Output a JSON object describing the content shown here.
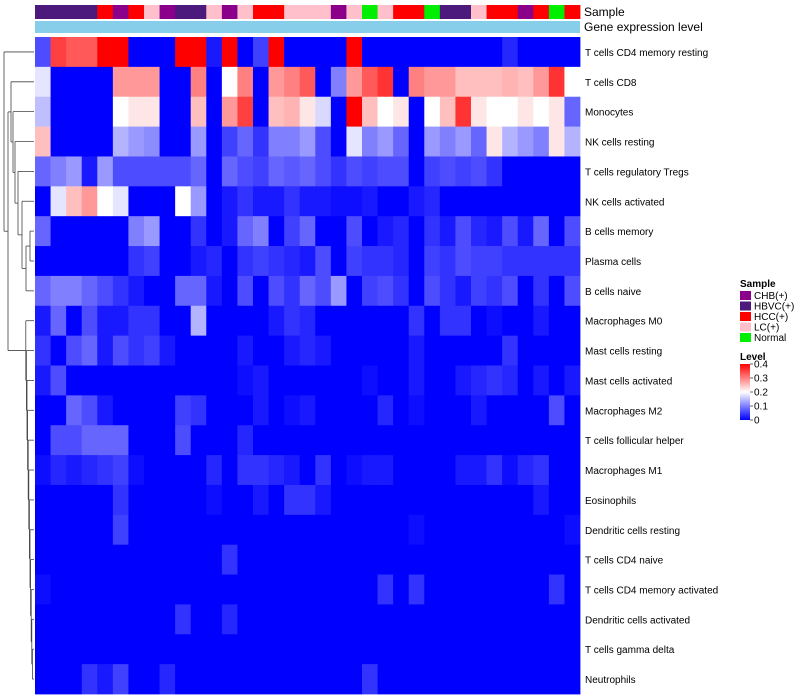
{
  "chart_data": {
    "type": "heatmap",
    "title": "",
    "annotation_tracks": [
      "Sample",
      "Gene expression level"
    ],
    "rows": [
      "T cells CD4 memory resting",
      "T cells CD8",
      "Monocytes",
      "NK cells resting",
      "T cells regulatory  Tregs",
      "NK cells activated",
      "B cells memory",
      "Plasma cells",
      "B cells naive",
      "Macrophages M0",
      "Mast cells resting",
      "Mast cells activated",
      "Macrophages M2",
      "T cells follicular helper",
      "Macrophages M1",
      "Eosinophils",
      "Dendritic cells resting",
      "T cells CD4 naive",
      "T cells CD4 memory activated",
      "Dendritic cells activated",
      "T cells gamma delta",
      "Neutrophils"
    ],
    "sample_groups": [
      "HBVC(+)",
      "HBVC(+)",
      "HBVC(+)",
      "HBVC(+)",
      "HCC(+)",
      "CHB(+)",
      "HCC(+)",
      "LC(+)",
      "CHB(+)",
      "HBVC(+)",
      "HBVC(+)",
      "LC(+)",
      "CHB(+)",
      "LC(+)",
      "HCC(+)",
      "HCC(+)",
      "LC(+)",
      "LC(+)",
      "LC(+)",
      "CHB(+)",
      "LC(+)",
      "Normal",
      "LC(+)",
      "HCC(+)",
      "HCC(+)",
      "Normal",
      "HBVC(+)",
      "HBVC(+)",
      "LC(+)",
      "HCC(+)",
      "HCC(+)",
      "CHB(+)",
      "HCC(+)",
      "Normal",
      "HCC(+)"
    ],
    "values": [
      [
        0.06,
        0.35,
        0.33,
        0.33,
        0.4,
        0.4,
        0.0,
        0.0,
        0.0,
        0.4,
        0.4,
        0.02,
        0.4,
        0.0,
        0.05,
        0.4,
        0.0,
        0.0,
        0.0,
        0.0,
        0.4,
        0.0,
        0.0,
        0.0,
        0.0,
        0.0,
        0.0,
        0.0,
        0.0,
        0.0,
        0.03,
        0.0,
        0.0,
        0.0,
        0.0
      ],
      [
        0.18,
        0.0,
        0.0,
        0.0,
        0.0,
        0.28,
        0.28,
        0.28,
        0.0,
        0.0,
        0.3,
        0.0,
        0.2,
        0.3,
        0.0,
        0.28,
        0.3,
        0.33,
        0.0,
        0.1,
        0.28,
        0.33,
        0.36,
        0.0,
        0.3,
        0.28,
        0.28,
        0.25,
        0.25,
        0.25,
        0.26,
        0.25,
        0.28,
        0.36,
        0.2
      ],
      [
        0.15,
        0.0,
        0.0,
        0.0,
        0.0,
        0.2,
        0.22,
        0.22,
        0.0,
        0.0,
        0.25,
        0.0,
        0.28,
        0.35,
        0.0,
        0.25,
        0.26,
        0.22,
        0.17,
        0.0,
        0.4,
        0.25,
        0.2,
        0.22,
        0.0,
        0.2,
        0.25,
        0.36,
        0.22,
        0.2,
        0.2,
        0.22,
        0.2,
        0.22,
        0.08
      ],
      [
        0.25,
        0.0,
        0.0,
        0.0,
        0.0,
        0.14,
        0.12,
        0.11,
        0.0,
        0.0,
        0.12,
        0.0,
        0.05,
        0.08,
        0.04,
        0.1,
        0.1,
        0.12,
        0.06,
        0.0,
        0.18,
        0.1,
        0.12,
        0.08,
        0.0,
        0.12,
        0.1,
        0.12,
        0.08,
        0.22,
        0.14,
        0.12,
        0.1,
        0.22,
        0.14
      ],
      [
        0.08,
        0.1,
        0.12,
        0.02,
        0.12,
        0.06,
        0.06,
        0.06,
        0.06,
        0.06,
        0.08,
        0.0,
        0.08,
        0.06,
        0.05,
        0.08,
        0.07,
        0.08,
        0.06,
        0.04,
        0.06,
        0.05,
        0.06,
        0.06,
        0.0,
        0.05,
        0.06,
        0.05,
        0.06,
        0.04,
        0.0,
        0.0,
        0.0,
        0.0,
        0.0
      ],
      [
        0.0,
        0.18,
        0.25,
        0.28,
        0.2,
        0.18,
        0.0,
        0.0,
        0.0,
        0.2,
        0.12,
        0.0,
        0.02,
        0.04,
        0.02,
        0.02,
        0.04,
        0.02,
        0.02,
        0.01,
        0.01,
        0.02,
        0.0,
        0.0,
        0.02,
        0.03,
        0.0,
        0.0,
        0.0,
        0.0,
        0.0,
        0.0,
        0.0,
        0.0,
        0.0
      ],
      [
        0.08,
        0.0,
        0.0,
        0.0,
        0.0,
        0.0,
        0.1,
        0.12,
        0.0,
        0.0,
        0.04,
        0.0,
        0.02,
        0.08,
        0.1,
        0.0,
        0.05,
        0.08,
        0.0,
        0.0,
        0.06,
        0.0,
        0.02,
        0.03,
        0.0,
        0.04,
        0.02,
        0.06,
        0.03,
        0.02,
        0.06,
        0.02,
        0.08,
        0.0,
        0.06
      ],
      [
        0.0,
        0.0,
        0.0,
        0.0,
        0.0,
        0.0,
        0.04,
        0.05,
        0.0,
        0.0,
        0.02,
        0.03,
        0.0,
        0.04,
        0.05,
        0.04,
        0.03,
        0.02,
        0.06,
        0.0,
        0.05,
        0.04,
        0.04,
        0.03,
        0.0,
        0.05,
        0.04,
        0.06,
        0.05,
        0.05,
        0.04,
        0.04,
        0.04,
        0.04,
        0.04
      ],
      [
        0.08,
        0.1,
        0.1,
        0.08,
        0.06,
        0.04,
        0.02,
        0.0,
        0.0,
        0.08,
        0.08,
        0.02,
        0.0,
        0.06,
        0.0,
        0.06,
        0.04,
        0.08,
        0.06,
        0.12,
        0.0,
        0.05,
        0.06,
        0.04,
        0.0,
        0.06,
        0.04,
        0.02,
        0.05,
        0.04,
        0.06,
        0.0,
        0.04,
        0.0,
        0.06
      ],
      [
        0.02,
        0.08,
        0.0,
        0.06,
        0.02,
        0.02,
        0.04,
        0.04,
        0.0,
        0.0,
        0.14,
        0.0,
        0.0,
        0.0,
        0.0,
        0.02,
        0.04,
        0.03,
        0.0,
        0.0,
        0.0,
        0.0,
        0.0,
        0.0,
        0.04,
        0.0,
        0.04,
        0.04,
        0.0,
        0.01,
        0.0,
        0.0,
        0.02,
        0.0,
        0.0
      ],
      [
        0.04,
        0.0,
        0.06,
        0.08,
        0.02,
        0.06,
        0.04,
        0.05,
        0.02,
        0.0,
        0.0,
        0.0,
        0.0,
        0.02,
        0.0,
        0.0,
        0.02,
        0.03,
        0.02,
        0.0,
        0.0,
        0.0,
        0.0,
        0.0,
        0.02,
        0.0,
        0.0,
        0.0,
        0.0,
        0.0,
        0.04,
        0.0,
        0.0,
        0.0,
        0.0
      ],
      [
        0.02,
        0.06,
        0.0,
        0.0,
        0.0,
        0.0,
        0.0,
        0.0,
        0.0,
        0.0,
        0.0,
        0.0,
        0.0,
        0.01,
        0.02,
        0.0,
        0.0,
        0.0,
        0.0,
        0.0,
        0.0,
        0.01,
        0.0,
        0.0,
        0.02,
        0.0,
        0.0,
        0.02,
        0.03,
        0.04,
        0.03,
        0.0,
        0.02,
        0.0,
        0.02
      ],
      [
        0.0,
        0.0,
        0.08,
        0.06,
        0.02,
        0.0,
        0.0,
        0.0,
        0.0,
        0.05,
        0.04,
        0.0,
        0.0,
        0.0,
        0.02,
        0.0,
        0.01,
        0.02,
        0.0,
        0.0,
        0.0,
        0.0,
        0.03,
        0.0,
        0.01,
        0.0,
        0.0,
        0.0,
        0.02,
        0.0,
        0.0,
        0.0,
        0.0,
        0.06,
        0.0
      ],
      [
        0.0,
        0.06,
        0.06,
        0.08,
        0.08,
        0.08,
        0.0,
        0.0,
        0.0,
        0.06,
        0.0,
        0.0,
        0.0,
        0.03,
        0.0,
        0.0,
        0.0,
        0.0,
        0.0,
        0.0,
        0.0,
        0.0,
        0.0,
        0.0,
        0.0,
        0.0,
        0.0,
        0.0,
        0.0,
        0.0,
        0.0,
        0.0,
        0.0,
        0.0,
        0.0
      ],
      [
        0.01,
        0.03,
        0.02,
        0.03,
        0.04,
        0.05,
        0.01,
        0.0,
        0.0,
        0.0,
        0.0,
        0.03,
        0.0,
        0.04,
        0.04,
        0.03,
        0.02,
        0.0,
        0.04,
        0.0,
        0.01,
        0.02,
        0.02,
        0.0,
        0.0,
        0.0,
        0.0,
        0.02,
        0.02,
        0.04,
        0.01,
        0.03,
        0.04,
        0.0,
        0.0
      ],
      [
        0.0,
        0.0,
        0.0,
        0.0,
        0.0,
        0.04,
        0.0,
        0.0,
        0.0,
        0.0,
        0.0,
        0.01,
        0.0,
        0.0,
        0.02,
        0.0,
        0.04,
        0.04,
        0.02,
        0.0,
        0.0,
        0.0,
        0.0,
        0.0,
        0.0,
        0.0,
        0.0,
        0.0,
        0.0,
        0.0,
        0.0,
        0.0,
        0.02,
        0.0,
        0.0
      ],
      [
        0.0,
        0.0,
        0.0,
        0.0,
        0.0,
        0.05,
        0.0,
        0.0,
        0.0,
        0.0,
        0.0,
        0.0,
        0.0,
        0.0,
        0.0,
        0.0,
        0.0,
        0.0,
        0.0,
        0.0,
        0.0,
        0.0,
        0.0,
        0.0,
        0.01,
        0.0,
        0.0,
        0.0,
        0.0,
        0.0,
        0.0,
        0.0,
        0.0,
        0.0,
        0.01
      ],
      [
        0.0,
        0.0,
        0.0,
        0.0,
        0.0,
        0.0,
        0.0,
        0.0,
        0.0,
        0.0,
        0.0,
        0.0,
        0.04,
        0.0,
        0.0,
        0.0,
        0.0,
        0.0,
        0.0,
        0.0,
        0.0,
        0.0,
        0.0,
        0.0,
        0.0,
        0.0,
        0.0,
        0.0,
        0.0,
        0.0,
        0.0,
        0.0,
        0.0,
        0.0,
        0.0
      ],
      [
        0.01,
        0.0,
        0.0,
        0.0,
        0.0,
        0.0,
        0.0,
        0.0,
        0.0,
        0.0,
        0.0,
        0.0,
        0.0,
        0.0,
        0.0,
        0.0,
        0.0,
        0.0,
        0.0,
        0.0,
        0.0,
        0.0,
        0.04,
        0.0,
        0.04,
        0.0,
        0.0,
        0.0,
        0.0,
        0.0,
        0.0,
        0.0,
        0.0,
        0.04,
        0.0
      ],
      [
        0.0,
        0.0,
        0.0,
        0.0,
        0.0,
        0.0,
        0.0,
        0.0,
        0.0,
        0.04,
        0.0,
        0.0,
        0.03,
        0.0,
        0.0,
        0.0,
        0.0,
        0.0,
        0.0,
        0.0,
        0.0,
        0.0,
        0.0,
        0.0,
        0.0,
        0.0,
        0.0,
        0.0,
        0.0,
        0.0,
        0.0,
        0.0,
        0.0,
        0.0,
        0.0
      ],
      [
        0.0,
        0.0,
        0.0,
        0.0,
        0.0,
        0.0,
        0.0,
        0.0,
        0.0,
        0.0,
        0.0,
        0.0,
        0.0,
        0.0,
        0.0,
        0.0,
        0.0,
        0.0,
        0.0,
        0.0,
        0.0,
        0.0,
        0.0,
        0.0,
        0.0,
        0.0,
        0.0,
        0.0,
        0.0,
        0.0,
        0.0,
        0.0,
        0.0,
        0.0,
        0.0
      ],
      [
        0.0,
        0.0,
        0.0,
        0.04,
        0.02,
        0.05,
        0.0,
        0.0,
        0.03,
        0.0,
        0.0,
        0.0,
        0.0,
        0.0,
        0.0,
        0.0,
        0.0,
        0.0,
        0.0,
        0.0,
        0.0,
        0.04,
        0.0,
        0.0,
        0.0,
        0.0,
        0.0,
        0.0,
        0.0,
        0.0,
        0.0,
        0.0,
        0.0,
        0.0,
        0.0
      ]
    ],
    "color_scale": {
      "min": 0,
      "max": 0.4,
      "low": "#0000ff",
      "mid": "#ffffff",
      "high": "#ff0000"
    },
    "legend": {
      "sample_title": "Sample",
      "sample_entries": [
        {
          "label": "CHB(+)",
          "color": "#8b008b"
        },
        {
          "label": "HBVC(+)",
          "color": "#4b1a7c"
        },
        {
          "label": "HCC(+)",
          "color": "#ff0000"
        },
        {
          "label": "LC(+)",
          "color": "#ffc0cb"
        },
        {
          "label": "Normal",
          "color": "#00ee00"
        }
      ],
      "level_title": "Level",
      "level_ticks": [
        "0.4",
        "0.3",
        "0.2",
        "0.1",
        "0"
      ],
      "level_tick_values": [
        0.4,
        0.3,
        0.2,
        0.1,
        0.0
      ],
      "position": "right"
    },
    "expression_bar_color": "#87ceeb"
  }
}
